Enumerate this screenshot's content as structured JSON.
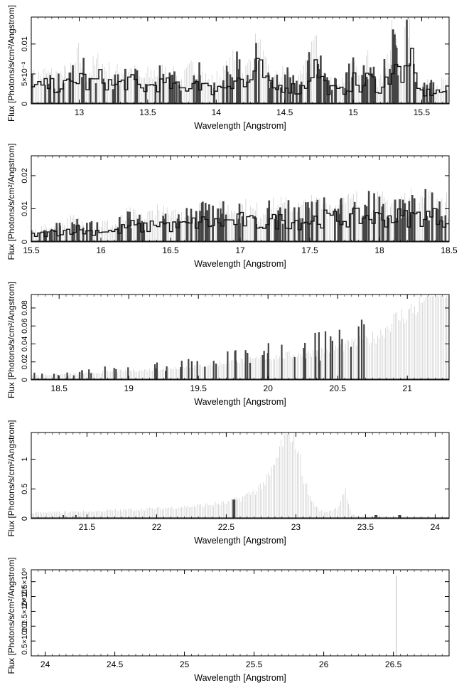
{
  "chart_data": [
    {
      "type": "line",
      "xlabel": "Wavelength [Angstrom]",
      "ylabel": "Flux [Photons/s/cm²/Angstrom]",
      "xlim": [
        12.65,
        15.7
      ],
      "ylim": [
        0,
        0.0145
      ],
      "xticks": [
        13,
        13.5,
        14,
        14.5,
        15,
        15.5
      ],
      "xtick_labels": [
        "13",
        "13.5",
        "14",
        "14.5",
        "15",
        "15.5"
      ],
      "yticks": [
        0,
        0.005,
        0.01
      ],
      "ytick_labels": [
        "0",
        "5×10⁻³",
        "0.01"
      ],
      "series": [
        {
          "style": "step",
          "x": [
            12.65,
            12.75,
            12.85,
            12.95,
            13.0,
            13.05,
            13.15,
            13.25,
            13.35,
            13.45,
            13.55,
            13.65,
            13.75,
            13.85,
            13.95,
            14.05,
            14.15,
            14.2,
            14.3,
            14.4,
            14.5,
            14.6,
            14.65,
            14.7,
            14.8,
            14.9,
            15.0,
            15.05,
            15.1,
            15.2,
            15.3,
            15.35,
            15.4,
            15.45,
            15.5,
            15.6,
            15.7
          ],
          "y": [
            0.0026,
            0.0031,
            0.0029,
            0.0033,
            0.005,
            0.0031,
            0.0043,
            0.0029,
            0.0039,
            0.0025,
            0.0033,
            0.0031,
            0.0024,
            0.004,
            0.0022,
            0.003,
            0.0046,
            0.0028,
            0.006,
            0.0023,
            0.0032,
            0.0021,
            0.0035,
            0.0067,
            0.0026,
            0.002,
            0.0038,
            0.0022,
            0.0045,
            0.0022,
            0.0072,
            0.003,
            0.0094,
            0.0026,
            0.0018,
            0.002,
            0.0022
          ]
        }
      ]
    },
    {
      "type": "line",
      "xlabel": "Wavelength [Angstrom]",
      "ylabel": "Flux [Photons/s/cm²/Angstrom]",
      "xlim": [
        15.5,
        18.5
      ],
      "ylim": [
        0,
        0.026
      ],
      "xticks": [
        15.5,
        16,
        16.5,
        17,
        17.5,
        18,
        18.5
      ],
      "xtick_labels": [
        "15.5",
        "16",
        "16.5",
        "17",
        "17.5",
        "18",
        "18.5"
      ],
      "yticks": [
        0,
        0.01,
        0.02
      ],
      "ytick_labels": [
        "0",
        "0.01",
        "0.02"
      ],
      "series": [
        {
          "style": "step",
          "x": [
            15.5,
            15.6,
            15.7,
            15.8,
            15.9,
            16.0,
            16.1,
            16.2,
            16.3,
            16.4,
            16.5,
            16.6,
            16.7,
            16.8,
            16.9,
            17.0,
            17.1,
            17.2,
            17.3,
            17.4,
            17.5,
            17.6,
            17.7,
            17.8,
            17.9,
            18.0,
            18.1,
            18.2,
            18.3,
            18.4,
            18.5
          ],
          "y": [
            0.002,
            0.0025,
            0.003,
            0.004,
            0.003,
            0.0035,
            0.003,
            0.005,
            0.004,
            0.006,
            0.0045,
            0.005,
            0.006,
            0.0055,
            0.006,
            0.0065,
            0.0055,
            0.006,
            0.0065,
            0.006,
            0.0065,
            0.007,
            0.0068,
            0.0072,
            0.0075,
            0.007,
            0.0075,
            0.0072,
            0.0078,
            0.0075,
            0.007
          ]
        }
      ]
    },
    {
      "type": "line",
      "xlabel": "Wavelength [Angstrom]",
      "ylabel": "Flux [Photons/s/cm²/Angstrom]",
      "xlim": [
        18.3,
        21.3
      ],
      "ylim": [
        0,
        0.095
      ],
      "xticks": [
        18.5,
        19,
        19.5,
        20,
        20.5,
        21
      ],
      "xtick_labels": [
        "18.5",
        "19",
        "19.5",
        "20",
        "20.5",
        "21"
      ],
      "yticks": [
        0,
        0.02,
        0.04,
        0.06,
        0.08
      ],
      "ytick_labels": [
        "0",
        "0.02",
        "0.04",
        "0.06",
        "0.08"
      ],
      "series": [
        {
          "style": "line",
          "x": [
            18.3,
            18.5,
            18.7,
            18.9,
            19.1,
            19.3,
            19.5,
            19.7,
            19.9,
            20.1,
            20.3,
            20.5,
            20.7,
            20.8,
            20.9,
            21.0,
            21.1,
            21.15,
            21.2,
            21.3
          ],
          "y": [
            0.004,
            0.005,
            0.006,
            0.008,
            0.009,
            0.011,
            0.013,
            0.016,
            0.019,
            0.022,
            0.025,
            0.03,
            0.036,
            0.042,
            0.055,
            0.062,
            0.07,
            0.085,
            0.086,
            0.084
          ]
        }
      ]
    },
    {
      "type": "line",
      "xlabel": "Wavelength [Angstrom]",
      "ylabel": "Flux [Photons/s/cm²/Angstrom]",
      "xlim": [
        21.1,
        24.1
      ],
      "ylim": [
        0,
        1.45
      ],
      "xticks": [
        21.5,
        22,
        22.5,
        23,
        23.5,
        24
      ],
      "xtick_labels": [
        "21.5",
        "22",
        "22.5",
        "23",
        "23.5",
        "24"
      ],
      "yticks": [
        0,
        0.5,
        1
      ],
      "ytick_labels": [
        "0",
        "0.5",
        "1"
      ],
      "series": [
        {
          "style": "line",
          "x": [
            21.1,
            21.5,
            22.0,
            22.3,
            22.5,
            22.6,
            22.7,
            22.8,
            22.85,
            22.9,
            22.95,
            23.0,
            23.05,
            23.1,
            23.15,
            23.2,
            23.3,
            23.35,
            23.4,
            23.5,
            24.1
          ],
          "y": [
            0.08,
            0.1,
            0.14,
            0.18,
            0.22,
            0.28,
            0.38,
            0.55,
            0.75,
            1.05,
            1.3,
            1.1,
            0.62,
            0.3,
            0.15,
            0.08,
            0.15,
            0.42,
            0.05,
            0.03,
            0.02
          ]
        }
      ]
    },
    {
      "type": "line",
      "xlabel": "Wavelength [Angstrom]",
      "ylabel": "Flux [Photons/s/cm²/Angstrom]",
      "xlim": [
        23.9,
        26.9
      ],
      "ylim": [
        0,
        290000000.0
      ],
      "xticks": [
        24,
        24.5,
        25,
        25.5,
        26,
        26.5
      ],
      "xtick_labels": [
        "24",
        "24.5",
        "25",
        "25.5",
        "26",
        "26.5"
      ],
      "yticks": [
        50000000.0,
        100000000.0,
        150000000.0,
        200000000.0,
        250000000.0
      ],
      "ytick_labels": [
        "0.5×10⁸",
        "10⁸",
        "1.5×10⁸",
        "2×10⁸",
        "2.5×10⁸"
      ],
      "series": [
        {
          "style": "spike",
          "x": [
            26.52
          ],
          "y": [
            270000000.0
          ]
        }
      ]
    }
  ]
}
